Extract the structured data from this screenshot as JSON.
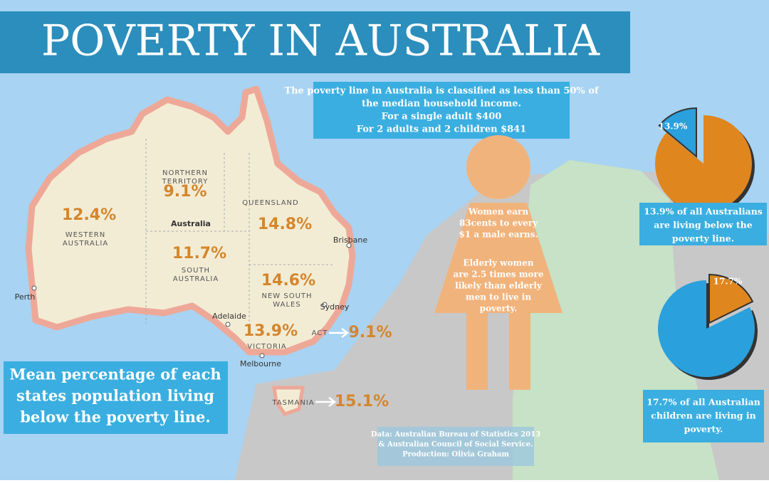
{
  "header": {
    "title": "POVERTY IN AUSTRALIA"
  },
  "map": {
    "country": "Australia",
    "states": [
      {
        "name_lines": [
          "NORTHERN",
          "TERRITORY"
        ],
        "percent": "9.1%"
      },
      {
        "name_lines": [
          "WESTERN",
          "AUSTRALIA"
        ],
        "percent": "12.4%"
      },
      {
        "name_lines": [
          "QUEENSLAND"
        ],
        "percent": "14.8%"
      },
      {
        "name_lines": [
          "SOUTH",
          "AUSTRALIA"
        ],
        "percent": "11.7%"
      },
      {
        "name_lines": [
          "NEW SOUTH",
          "WALES"
        ],
        "percent": "14.6%"
      },
      {
        "name_lines": [
          "VICTORIA"
        ],
        "percent": "13.9%"
      },
      {
        "name_lines": [
          "ACT"
        ],
        "percent": "9.1%"
      },
      {
        "name_lines": [
          "TASMANIA"
        ],
        "percent": "15.1%"
      }
    ],
    "cities": [
      "Perth",
      "Adelaide",
      "Melbourne",
      "Sydney",
      "Brisbane"
    ],
    "caption_lines": [
      "Mean percentage of each",
      "states population living",
      "below the poverty line."
    ]
  },
  "info": {
    "lines": [
      "The poverty line in Australia is classified as less than 50% of",
      "the median household income.",
      "For a single adult $400",
      "For 2 adults and 2 children $841"
    ]
  },
  "woman": {
    "lines_a": [
      "Women earn",
      "83cents to every",
      "$1 a male earns."
    ],
    "lines_b": [
      "Elderly women",
      "are 2.5 times more",
      "likely than elderly",
      "men to live in",
      "poverty."
    ]
  },
  "pies": [
    {
      "value": 13.9,
      "label": "13.9%",
      "caption_lines": [
        "13.9% of all Australians",
        "are living below the",
        "poverty line."
      ]
    },
    {
      "value": 17.7,
      "label": "17.7%",
      "caption_lines": [
        "17.7% of all Australian",
        "children are living in",
        "poverty."
      ]
    }
  ],
  "source": {
    "lines": [
      "Data: Australian Bureau of Statistics 2013",
      "& Australian Council of Social Service.",
      "Production: Olivia Graham"
    ]
  }
}
